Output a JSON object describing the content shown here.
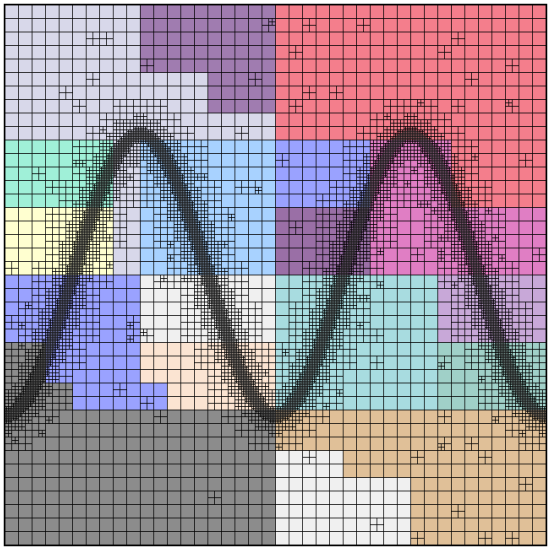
{
  "figure": {
    "description_free": true,
    "background": "#ffffff",
    "frame_color": "#000000",
    "grid_line_color": "#000000",
    "domain": {
      "x": [
        0,
        1
      ],
      "y": [
        0,
        1
      ]
    },
    "base_cells": 40,
    "curve": {
      "type": "sine",
      "periods": 2,
      "amplitude": 0.26,
      "center": 0.5,
      "stroke_color": "#333333"
    },
    "partition_colors": [
      {
        "name": "lavender-grey",
        "color": "#d8d8ea"
      },
      {
        "name": "purple",
        "color": "#a07cb0"
      },
      {
        "name": "salmon",
        "color": "#f47e8c"
      },
      {
        "name": "mint",
        "color": "#a0f0d8"
      },
      {
        "name": "cream",
        "color": "#ffffd0"
      },
      {
        "name": "sky-blue",
        "color": "#a8d2ff"
      },
      {
        "name": "periwinkle",
        "color": "#9aa2ff"
      },
      {
        "name": "dark-purple",
        "color": "#9a6fa6"
      },
      {
        "name": "orchid",
        "color": "#e07ec4"
      },
      {
        "name": "light-lilac",
        "color": "#c8a8d8"
      },
      {
        "name": "light-grey",
        "color": "#f0f0f0"
      },
      {
        "name": "peach",
        "color": "#fbe4d2"
      },
      {
        "name": "powder-blue",
        "color": "#a8dce0"
      },
      {
        "name": "teal-grey",
        "color": "#a0d0c8"
      },
      {
        "name": "grey",
        "color": "#8c8c8c"
      },
      {
        "name": "tan",
        "color": "#e0c098"
      }
    ]
  }
}
